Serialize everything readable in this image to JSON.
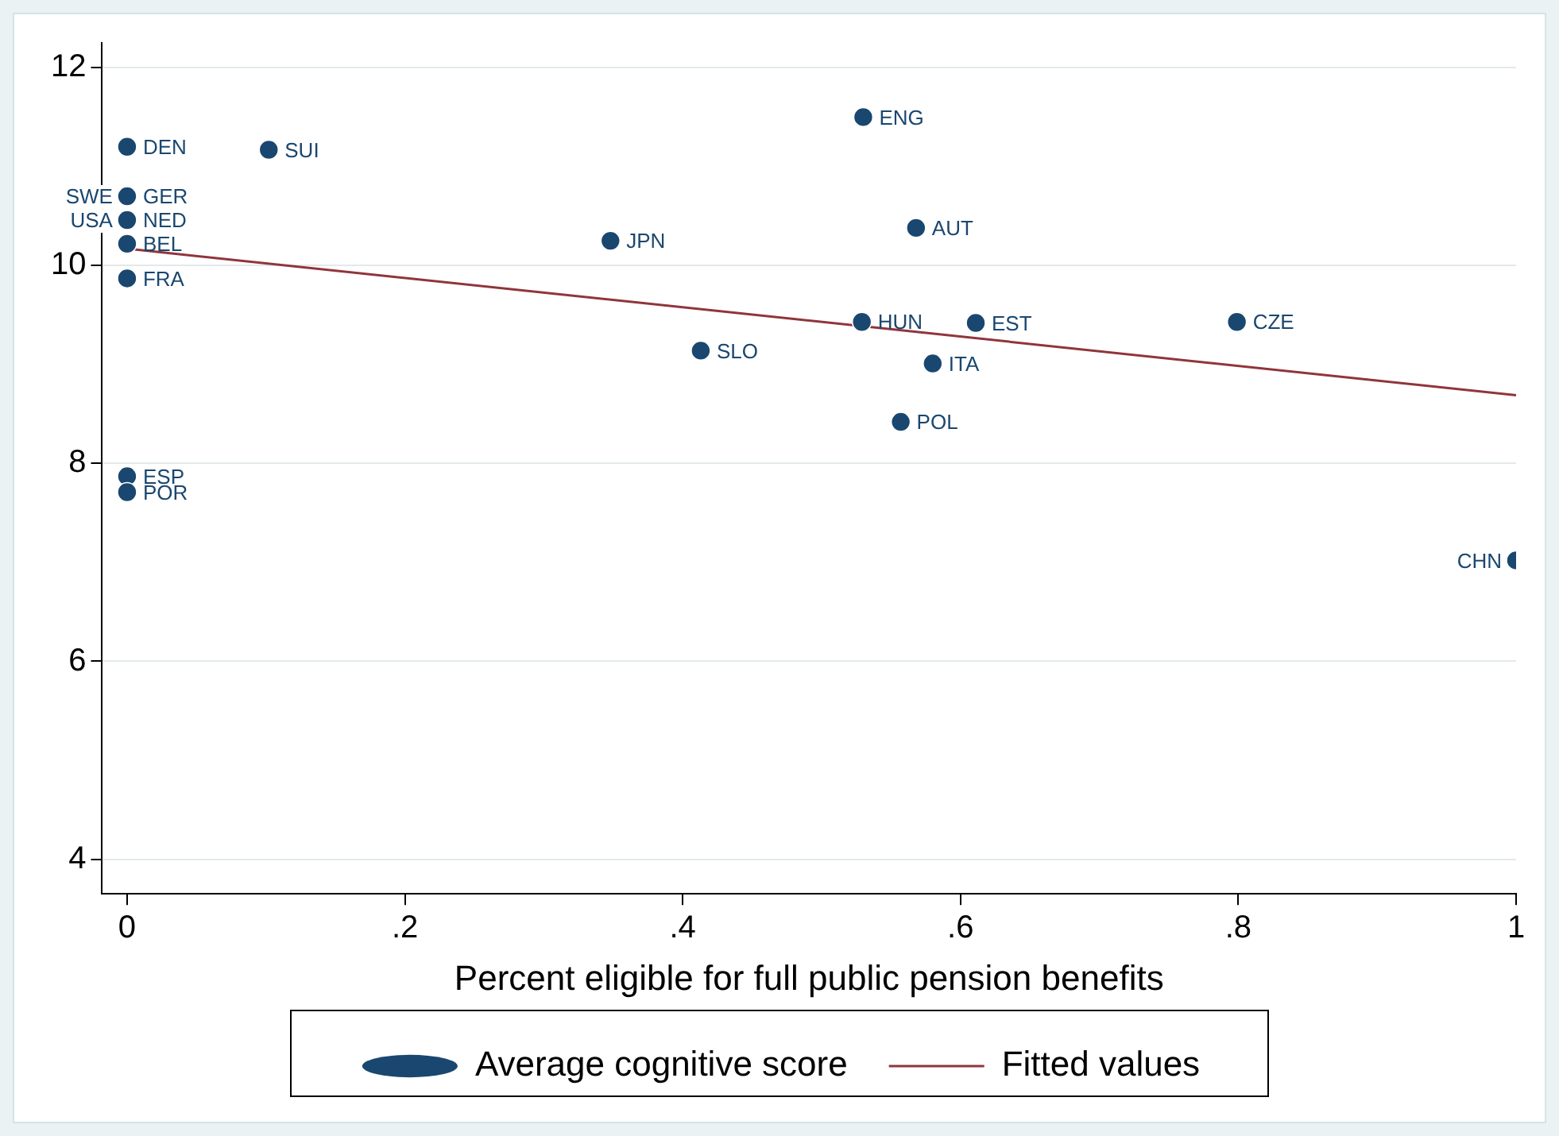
{
  "chart_data": {
    "type": "scatter",
    "xlabel": "Percent eligible for full public pension benefits",
    "annotations": [
      {
        "text": "SWE",
        "x": 0,
        "y": 10.7
      },
      {
        "text": "USA",
        "x": 0,
        "y": 10.46
      }
    ],
    "xlim": [
      -0.018,
      1.0
    ],
    "xticks": [
      0,
      {
        "value": 0.2,
        "label": ".2"
      },
      {
        "value": 0.4,
        "label": ".4"
      },
      {
        "value": 0.6,
        "label": ".6"
      },
      {
        "value": 0.8,
        "label": ".8"
      },
      1
    ],
    "ylim": [
      3.65,
      12.25
    ],
    "yticks": [
      4,
      6,
      8,
      10,
      12
    ],
    "grid": "y",
    "legend": "bottom",
    "series": [
      {
        "type": "scatter",
        "name": "Average cognitive score",
        "color": "#1a476f",
        "marker": "circle",
        "x": [
          0,
          0.102,
          0,
          0,
          0,
          0,
          0,
          0,
          0.348,
          0.53,
          0.568,
          0.529,
          0.611,
          0.799,
          0.413,
          0.58,
          0.557,
          1.0
        ],
        "values": [
          11.2,
          11.17,
          10.7,
          10.46,
          10.22,
          9.87,
          7.87,
          7.71,
          10.25,
          11.5,
          10.38,
          9.43,
          9.42,
          9.43,
          9.14,
          9.01,
          8.42,
          7.02
        ],
        "value_labels": [
          "DEN",
          "SUI",
          "GER",
          "NED",
          "BEL",
          "FRA",
          "ESP",
          "POR",
          "JPN",
          "ENG",
          "AUT",
          "HUN",
          "EST",
          "CZE",
          "SLO",
          "ITA",
          "POL",
          "CHN"
        ]
      },
      {
        "type": "line",
        "name": "Fitted values",
        "color": "#90353b",
        "marker": "none",
        "x": [
          0,
          1
        ],
        "values": [
          10.17,
          8.69
        ]
      }
    ]
  }
}
